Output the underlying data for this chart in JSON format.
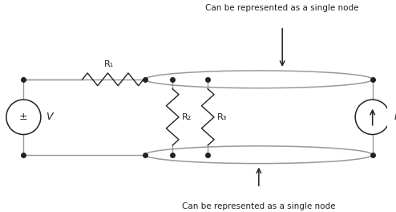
{
  "title_top": "Can be represented as a single node",
  "title_bottom": "Can be represented as a single node",
  "bg_color": "#ffffff",
  "line_color": "#999999",
  "dark_color": "#222222",
  "text_color": "#222222",
  "label_R1": "R₁",
  "label_R2": "R₂",
  "label_R3": "R₃",
  "label_V": "V",
  "label_I": "I"
}
